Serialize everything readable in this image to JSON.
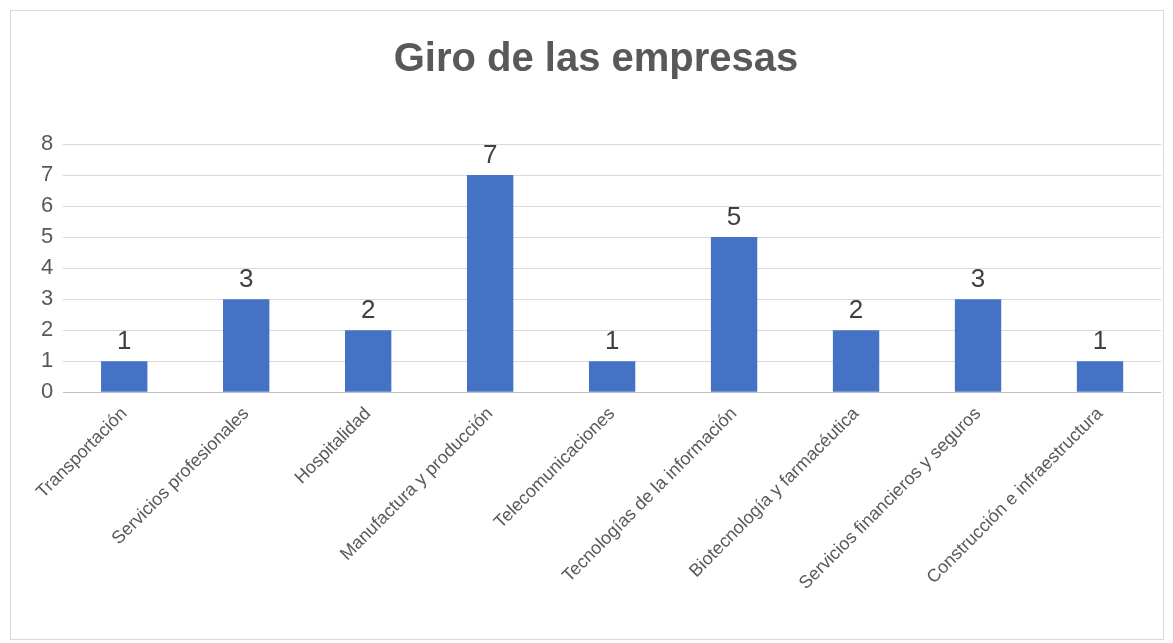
{
  "chart_data": {
    "type": "bar",
    "title": "Giro de las empresas",
    "categories": [
      "Transportación",
      "Servicios profesionales",
      "Hospitalidad",
      "Manufactura y producción",
      "Telecomunicaciones",
      "Tecnologías de la información",
      "Biotecnología y farmacéutica",
      "Servicios financieros y seguros",
      "Construcción e infraestructura"
    ],
    "values": [
      1,
      3,
      2,
      7,
      1,
      5,
      2,
      3,
      1
    ],
    "color": "#4472c4",
    "ylim": [
      0,
      8
    ],
    "yticks": [
      0,
      1,
      2,
      3,
      4,
      5,
      6,
      7,
      8
    ],
    "grid": "y",
    "data_labels": true,
    "legend": false
  }
}
